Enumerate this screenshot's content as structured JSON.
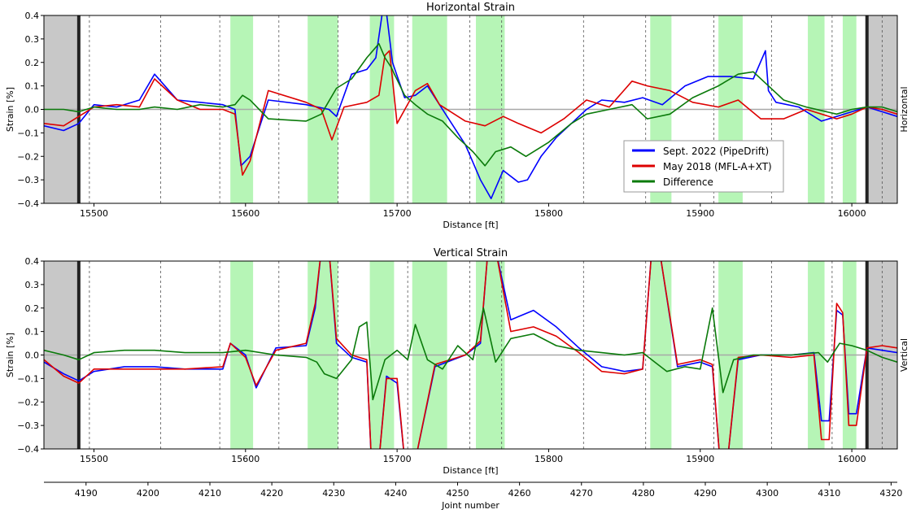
{
  "chart_data": [
    {
      "type": "line",
      "title": "Horizontal Strain",
      "xlabel": "Distance [ft]",
      "ylabel": "Strain [%]",
      "side_label": "Horizontal",
      "xlim": [
        15467,
        16030
      ],
      "ylim": [
        -0.4,
        0.4
      ],
      "xticks": [
        15500,
        15600,
        15700,
        15800,
        15900,
        16000
      ],
      "yticks": [
        -0.4,
        -0.3,
        -0.2,
        -0.1,
        0.0,
        0.1,
        0.2,
        0.3,
        0.4
      ],
      "legend": {
        "position": "lower-right",
        "entries": [
          {
            "label": "Sept. 2022 (PipeDrift)",
            "color": "#0000ff"
          },
          {
            "label": "May 2018 (MFL-A+XT)",
            "color": "#dd0000"
          },
          {
            "label": "Difference",
            "color": "#0a7a0a"
          }
        ]
      },
      "series": [
        {
          "name": "Sept. 2022 (PipeDrift)",
          "color": "#0000ff",
          "x": [
            15467,
            15480,
            15490,
            15500,
            15515,
            15530,
            15540,
            15555,
            15570,
            15585,
            15593,
            15597,
            15603,
            15615,
            15640,
            15655,
            15660,
            15670,
            15680,
            15686,
            15690,
            15693,
            15697,
            15705,
            15712,
            15720,
            15725,
            15735,
            15745,
            15755,
            15762,
            15770,
            15780,
            15786,
            15795,
            15805,
            15815,
            15825,
            15835,
            15850,
            15862,
            15875,
            15890,
            15905,
            15920,
            15935,
            15943,
            15945,
            15950,
            15965,
            15980,
            15990,
            16000,
            16010,
            16020,
            16030
          ],
          "y": [
            -0.07,
            -0.09,
            -0.06,
            0.02,
            0.01,
            0.04,
            0.15,
            0.04,
            0.03,
            0.02,
            0.0,
            -0.24,
            -0.2,
            0.04,
            0.02,
            0.0,
            -0.03,
            0.15,
            0.17,
            0.22,
            0.4,
            0.41,
            0.2,
            0.05,
            0.06,
            0.1,
            0.05,
            -0.05,
            -0.15,
            -0.3,
            -0.38,
            -0.26,
            -0.31,
            -0.3,
            -0.2,
            -0.12,
            -0.06,
            0.0,
            0.04,
            0.03,
            0.05,
            0.02,
            0.1,
            0.14,
            0.14,
            0.13,
            0.25,
            0.08,
            0.03,
            0.01,
            -0.05,
            -0.03,
            -0.01,
            0.01,
            -0.01,
            -0.03
          ]
        },
        {
          "name": "May 2018 (MFL-A+XT)",
          "color": "#dd0000",
          "x": [
            15467,
            15480,
            15490,
            15500,
            15515,
            15530,
            15540,
            15555,
            15570,
            15585,
            15593,
            15598,
            15603,
            15615,
            15640,
            15650,
            15657,
            15665,
            15680,
            15688,
            15692,
            15695,
            15700,
            15712,
            15720,
            15728,
            15745,
            15758,
            15770,
            15780,
            15795,
            15810,
            15825,
            15840,
            15855,
            15865,
            15880,
            15895,
            15912,
            15925,
            15940,
            15955,
            15970,
            15990,
            16000,
            16010,
            16020,
            16030
          ],
          "y": [
            -0.06,
            -0.07,
            -0.03,
            0.01,
            0.02,
            0.01,
            0.13,
            0.04,
            0.0,
            0.0,
            -0.02,
            -0.28,
            -0.22,
            0.08,
            0.03,
            0.0,
            -0.13,
            0.01,
            0.03,
            0.06,
            0.23,
            0.25,
            -0.06,
            0.08,
            0.11,
            0.02,
            -0.05,
            -0.07,
            -0.03,
            -0.06,
            -0.1,
            -0.04,
            0.04,
            0.01,
            0.12,
            0.1,
            0.08,
            0.03,
            0.01,
            0.04,
            -0.04,
            -0.04,
            0.0,
            -0.04,
            -0.02,
            0.01,
            0.0,
            -0.02
          ]
        },
        {
          "name": "Difference",
          "color": "#0a7a0a",
          "x": [
            15467,
            15480,
            15490,
            15500,
            15515,
            15530,
            15540,
            15555,
            15570,
            15585,
            15593,
            15598,
            15603,
            15615,
            15640,
            15650,
            15660,
            15670,
            15680,
            15688,
            15692,
            15696,
            15705,
            15712,
            15720,
            15730,
            15740,
            15750,
            15758,
            15765,
            15775,
            15785,
            15800,
            15815,
            15825,
            15840,
            15855,
            15865,
            15880,
            15895,
            15912,
            15925,
            15935,
            15945,
            15955,
            15970,
            15990,
            16000,
            16010,
            16020,
            16030
          ],
          "y": [
            0.0,
            0.0,
            -0.01,
            0.01,
            0.0,
            0.0,
            0.01,
            0.0,
            0.02,
            0.01,
            0.02,
            0.06,
            0.04,
            -0.04,
            -0.05,
            -0.02,
            0.09,
            0.13,
            0.22,
            0.28,
            0.22,
            0.18,
            0.06,
            0.02,
            -0.02,
            -0.05,
            -0.12,
            -0.18,
            -0.24,
            -0.18,
            -0.16,
            -0.2,
            -0.14,
            -0.06,
            -0.02,
            0.0,
            0.02,
            -0.04,
            -0.02,
            0.05,
            0.1,
            0.15,
            0.16,
            0.1,
            0.04,
            0.01,
            -0.02,
            0.0,
            0.01,
            0.01,
            -0.01
          ]
        }
      ],
      "green_bands": [
        [
          15590,
          15605
        ],
        [
          15641,
          15661
        ],
        [
          15682,
          15698
        ],
        [
          15710,
          15733
        ],
        [
          15752,
          15771
        ],
        [
          15867,
          15881
        ],
        [
          15912,
          15928
        ],
        [
          15971,
          15982
        ],
        [
          15994,
          16003
        ]
      ],
      "gray_bands": [
        [
          15467,
          15490
        ],
        [
          16010,
          16030
        ]
      ],
      "thick_markers": [
        15490,
        16010
      ],
      "dashed_markers": [
        15497,
        15544,
        15583,
        15622,
        15661,
        15707,
        15748,
        15769,
        15823,
        15864,
        15909,
        15947,
        15987,
        16020
      ]
    },
    {
      "type": "line",
      "title": "Vertical Strain",
      "xlabel": "Distance [ft]",
      "ylabel": "Strain [%]",
      "side_label": "Vertical",
      "xlim": [
        15467,
        16030
      ],
      "ylim": [
        -0.4,
        0.4
      ],
      "xticks": [
        15500,
        15600,
        15700,
        15800,
        15900,
        16000
      ],
      "yticks": [
        -0.4,
        -0.3,
        -0.2,
        -0.1,
        0.0,
        0.1,
        0.2,
        0.3,
        0.4
      ],
      "series": [
        {
          "name": "Sept. 2022 (PipeDrift)",
          "color": "#0000ff",
          "x": [
            15467,
            15480,
            15490,
            15500,
            15520,
            15540,
            15560,
            15585,
            15590,
            15600,
            15607,
            15620,
            15640,
            15646,
            15650,
            15655,
            15660,
            15670,
            15680,
            15683,
            15688,
            15693,
            15700,
            15705,
            15712,
            15725,
            15745,
            15755,
            15760,
            15765,
            15775,
            15790,
            15805,
            15820,
            15835,
            15850,
            15862,
            15868,
            15873,
            15885,
            15900,
            15908,
            15913,
            15918,
            15925,
            15940,
            15960,
            15975,
            15980,
            15985,
            15990,
            15994,
            15998,
            16003,
            16010,
            16020,
            16030
          ],
          "y": [
            -0.03,
            -0.08,
            -0.11,
            -0.07,
            -0.05,
            -0.05,
            -0.06,
            -0.06,
            0.05,
            0.0,
            -0.14,
            0.03,
            0.04,
            0.2,
            0.45,
            0.45,
            0.05,
            -0.01,
            -0.03,
            -0.45,
            -0.45,
            -0.09,
            -0.12,
            -0.45,
            -0.45,
            -0.05,
            0.0,
            0.05,
            0.45,
            0.45,
            0.15,
            0.19,
            0.12,
            0.03,
            -0.05,
            -0.07,
            -0.06,
            0.45,
            0.45,
            -0.05,
            -0.03,
            -0.05,
            -0.45,
            -0.45,
            -0.02,
            0.0,
            0.0,
            0.01,
            -0.28,
            -0.28,
            0.19,
            0.17,
            -0.25,
            -0.25,
            0.03,
            0.02,
            0.01
          ]
        },
        {
          "name": "May 2018 (MFL-A+XT)",
          "color": "#dd0000",
          "x": [
            15467,
            15480,
            15490,
            15500,
            15520,
            15540,
            15560,
            15585,
            15590,
            15600,
            15607,
            15620,
            15640,
            15646,
            15650,
            15655,
            15660,
            15670,
            15680,
            15683,
            15688,
            15693,
            15700,
            15705,
            15712,
            15725,
            15745,
            15755,
            15760,
            15765,
            15775,
            15790,
            15805,
            15820,
            15835,
            15850,
            15862,
            15868,
            15873,
            15885,
            15900,
            15908,
            15913,
            15918,
            15925,
            15940,
            15960,
            15975,
            15980,
            15985,
            15990,
            15994,
            15998,
            16003,
            16010,
            16020,
            16030
          ],
          "y": [
            -0.02,
            -0.09,
            -0.12,
            -0.06,
            -0.06,
            -0.06,
            -0.06,
            -0.05,
            0.05,
            -0.01,
            -0.13,
            0.02,
            0.05,
            0.22,
            0.45,
            0.45,
            0.07,
            0.0,
            -0.02,
            -0.45,
            -0.45,
            -0.1,
            -0.1,
            -0.45,
            -0.45,
            -0.04,
            0.0,
            0.06,
            0.45,
            0.45,
            0.1,
            0.12,
            0.08,
            0.01,
            -0.07,
            -0.08,
            -0.06,
            0.45,
            0.45,
            -0.04,
            -0.02,
            -0.04,
            -0.45,
            -0.45,
            -0.01,
            0.0,
            -0.01,
            0.0,
            -0.36,
            -0.36,
            0.22,
            0.18,
            -0.3,
            -0.3,
            0.03,
            0.04,
            0.03
          ]
        },
        {
          "name": "Difference",
          "color": "#0a7a0a",
          "x": [
            15467,
            15480,
            15490,
            15500,
            15520,
            15540,
            15560,
            15585,
            15600,
            15620,
            15640,
            15647,
            15652,
            15660,
            15670,
            15675,
            15680,
            15684,
            15692,
            15700,
            15707,
            15712,
            15720,
            15730,
            15740,
            15750,
            15757,
            15765,
            15775,
            15790,
            15805,
            15820,
            15835,
            15850,
            15862,
            15870,
            15878,
            15890,
            15900,
            15908,
            15915,
            15922,
            15935,
            15960,
            15978,
            15984,
            15992,
            16000,
            16010,
            16020,
            16030
          ],
          "y": [
            0.02,
            0.0,
            -0.02,
            0.01,
            0.02,
            0.02,
            0.01,
            0.01,
            0.02,
            0.0,
            -0.01,
            -0.03,
            -0.08,
            -0.1,
            -0.02,
            0.12,
            0.14,
            -0.19,
            -0.02,
            0.02,
            -0.02,
            0.13,
            -0.02,
            -0.06,
            0.04,
            -0.02,
            0.2,
            -0.03,
            0.07,
            0.09,
            0.04,
            0.02,
            0.01,
            0.0,
            0.01,
            -0.03,
            -0.07,
            -0.05,
            -0.06,
            0.2,
            -0.16,
            -0.02,
            0.0,
            0.0,
            0.01,
            -0.03,
            0.05,
            0.04,
            0.02,
            -0.01,
            -0.03
          ]
        }
      ],
      "green_bands": [
        [
          15590,
          15605
        ],
        [
          15641,
          15661
        ],
        [
          15682,
          15698
        ],
        [
          15710,
          15733
        ],
        [
          15752,
          15771
        ],
        [
          15867,
          15881
        ],
        [
          15912,
          15928
        ],
        [
          15971,
          15982
        ],
        [
          15994,
          16003
        ]
      ],
      "gray_bands": [
        [
          15467,
          15490
        ],
        [
          16010,
          16030
        ]
      ],
      "thick_markers": [
        15490,
        16010
      ],
      "dashed_markers": [
        15497,
        15544,
        15583,
        15622,
        15661,
        15707,
        15748,
        15769,
        15823,
        15864,
        15909,
        15947,
        15987,
        16020
      ]
    }
  ],
  "joint_axis": {
    "label": "Joint number",
    "xlim": [
      4183.2,
      4321
    ],
    "ticks": [
      4190,
      4200,
      4210,
      4220,
      4230,
      4240,
      4250,
      4260,
      4270,
      4280,
      4290,
      4300,
      4310,
      4320
    ]
  }
}
